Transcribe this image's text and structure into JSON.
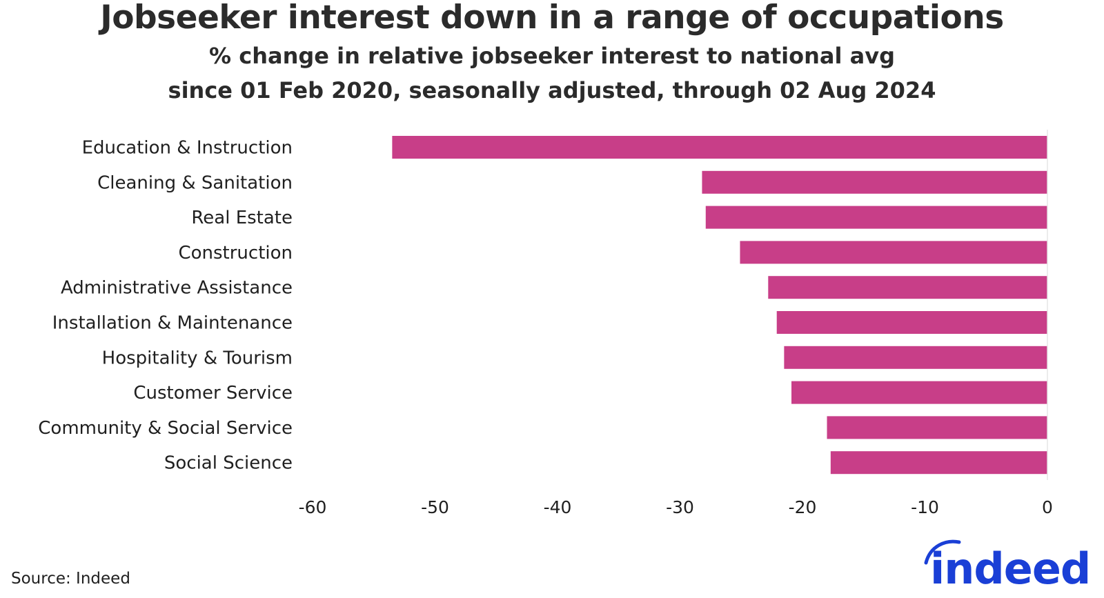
{
  "title": "Jobseeker interest down in a range of occupations",
  "subtitle_line1": "% change in relative jobseeker interest to national avg",
  "subtitle_line2": "since 01 Feb 2020, seasonally adjusted, through 02 Aug 2024",
  "source": "Source: Indeed",
  "logo_text": "indeed",
  "colors": {
    "bar": "#C83E88",
    "logo": "#1A3FD6"
  },
  "chart_data": {
    "type": "bar",
    "orientation": "horizontal",
    "categories": [
      "Education & Instruction",
      "Cleaning & Sanitation",
      "Real Estate",
      "Construction",
      "Administrative Assistance",
      "Installation & Maintenance",
      "Hospitality & Tourism",
      "Customer Service",
      "Community & Social Service",
      "Social Science"
    ],
    "values": [
      -53.5,
      -28.2,
      -27.9,
      -25.1,
      -22.8,
      -22.1,
      -21.5,
      -20.9,
      -18.0,
      -17.7
    ],
    "xlim": [
      -60,
      0
    ],
    "xticks": [
      -60,
      -50,
      -40,
      -30,
      -20,
      -10,
      0
    ],
    "xlabel": "",
    "ylabel": "",
    "grid": false
  }
}
